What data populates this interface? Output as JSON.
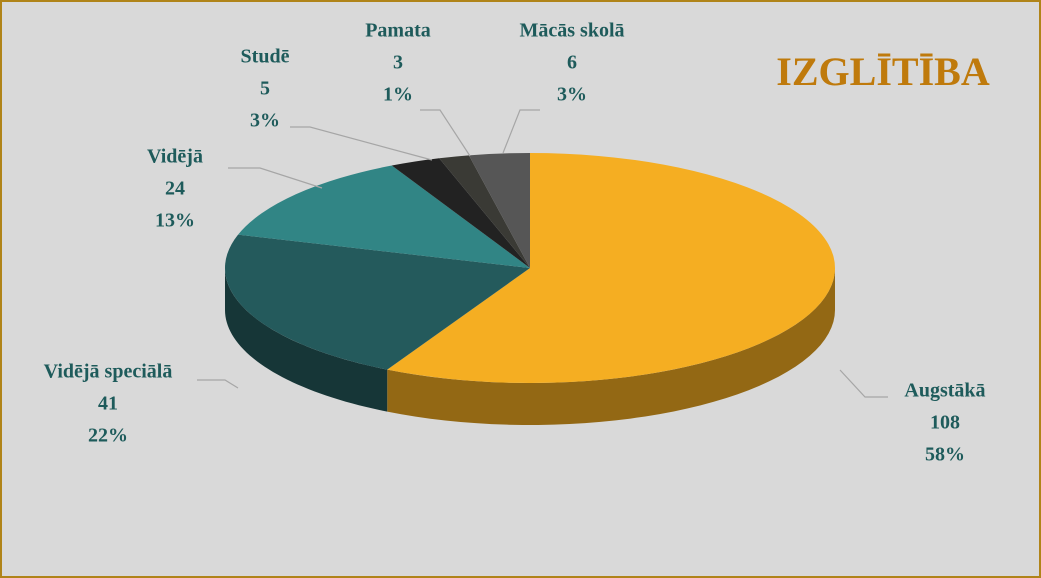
{
  "chart_data": {
    "type": "pie3d",
    "title": "IZGLĪTĪBA",
    "categories": [
      "Augstākā",
      "Vidējā speciālā",
      "Vidējā",
      "Studē",
      "Pamata",
      "Mācās skolā"
    ],
    "values": [
      108,
      41,
      24,
      5,
      3,
      6
    ],
    "percent_labels": [
      "58%",
      "22%",
      "13%",
      "3%",
      "1%",
      "3%"
    ],
    "colors": [
      "#f5ae22",
      "#245a5c",
      "#318585",
      "#222222",
      "#3a3a35",
      "#565656"
    ]
  }
}
